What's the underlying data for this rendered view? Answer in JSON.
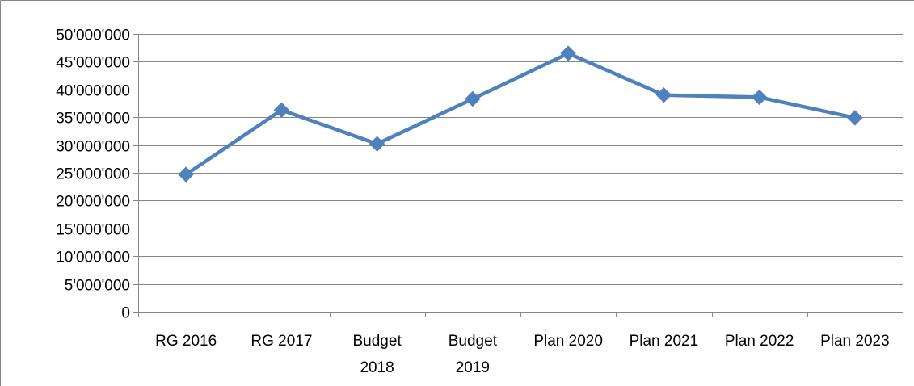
{
  "chart_data": {
    "type": "line",
    "categories": [
      [
        "RG 2016"
      ],
      [
        "RG 2017"
      ],
      [
        "Budget",
        "2018"
      ],
      [
        "Budget",
        "2019"
      ],
      [
        "Plan 2020"
      ],
      [
        "Plan 2021"
      ],
      [
        "Plan 2022"
      ],
      [
        "Plan 2023"
      ]
    ],
    "series": [
      {
        "values": [
          24700000,
          36300000,
          30200000,
          38300000,
          46500000,
          39000000,
          38600000,
          34900000
        ],
        "color": "#4F81BD",
        "marker": "diamond"
      }
    ],
    "yticks": [
      {
        "value": 0,
        "label": "0"
      },
      {
        "value": 5000000,
        "label": "5'000'000"
      },
      {
        "value": 10000000,
        "label": "10'000'000"
      },
      {
        "value": 15000000,
        "label": "15'000'000"
      },
      {
        "value": 20000000,
        "label": "20'000'000"
      },
      {
        "value": 25000000,
        "label": "25'000'000"
      },
      {
        "value": 30000000,
        "label": "30'000'000"
      },
      {
        "value": 35000000,
        "label": "35'000'000"
      },
      {
        "value": 40000000,
        "label": "40'000'000"
      },
      {
        "value": 45000000,
        "label": "45'000'000"
      },
      {
        "value": 50000000,
        "label": "50'000'000"
      }
    ],
    "ylim": [
      0,
      50000000
    ],
    "grid": true,
    "legend": "none",
    "gridline_color": "#868686",
    "axis_color": "#868686"
  }
}
